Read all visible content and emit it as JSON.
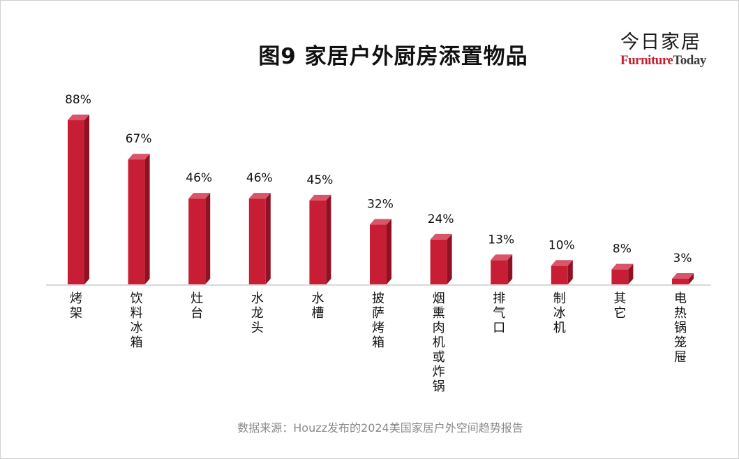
{
  "brand": {
    "cn": "今日家居",
    "en_part1": "Furniture",
    "en_part2": "Today"
  },
  "colors": {
    "bar_front": "#c81e35",
    "bar_side": "#8e1224",
    "bar_top": "#d9566a",
    "axis": "#d8d8d8"
  },
  "chart_data": {
    "type": "bar",
    "title": "图9  家居户外厨房添置物品",
    "categories": [
      "烤架",
      "饮料冰箱",
      "灶台",
      "水龙头",
      "水槽",
      "披萨烤箱",
      "烟熏肉机或炸锅",
      "排气口",
      "制冰机",
      "其它",
      "电热锅笼屉"
    ],
    "values": [
      88,
      67,
      46,
      46,
      45,
      32,
      24,
      13,
      10,
      8,
      3
    ],
    "value_labels": [
      "88%",
      "67%",
      "46%",
      "46%",
      "45%",
      "32%",
      "24%",
      "13%",
      "10%",
      "8%",
      "3%"
    ],
    "unit": "%",
    "ylim": [
      0,
      100
    ],
    "grid": false,
    "legend": "none",
    "style": "3d-column"
  },
  "source": "数据来源：Houzz发布的2024美国家居户外空间趋势报告"
}
